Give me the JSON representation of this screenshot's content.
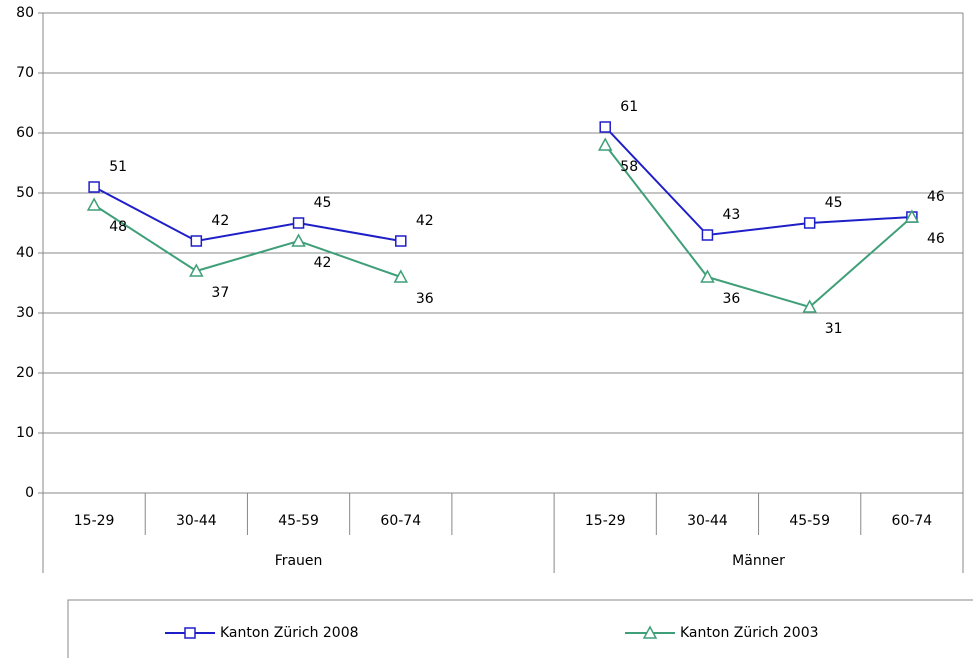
{
  "chart_data": {
    "type": "line",
    "categories": [
      "15-29",
      "30-44",
      "45-59",
      "60-74",
      null,
      "15-29",
      "30-44",
      "45-59",
      "60-74"
    ],
    "groups": [
      "Frauen",
      "Männer"
    ],
    "series": [
      {
        "name": "Kanton Zürich 2008",
        "color": "#1f1fc8",
        "marker": "square",
        "values": [
          51,
          42,
          45,
          42,
          null,
          61,
          43,
          45,
          46
        ]
      },
      {
        "name": "Kanton Zürich 2003",
        "color": "#3f9f78",
        "marker": "triangle",
        "values": [
          48,
          37,
          42,
          36,
          null,
          58,
          36,
          31,
          46
        ]
      }
    ],
    "ylim": [
      0,
      80
    ],
    "yticks": [
      0,
      10,
      20,
      30,
      40,
      50,
      60,
      70,
      80
    ],
    "grid": true,
    "legend": "bottom"
  }
}
